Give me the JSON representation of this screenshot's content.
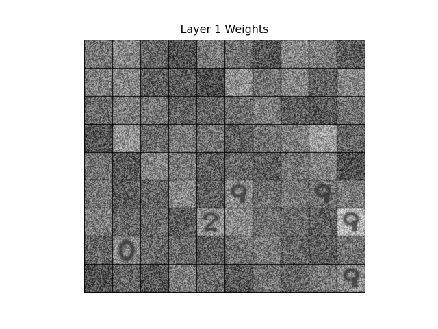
{
  "chart_data": {
    "type": "heatmap",
    "title": "Layer 1 Weights",
    "grid": {
      "rows": 9,
      "cols": 10
    },
    "colormap": "gray",
    "axes_visible": false,
    "tile_mean_brightness": [
      [
        0.47,
        0.53,
        0.4,
        0.33,
        0.48,
        0.45,
        0.33,
        0.53,
        0.5,
        0.36
      ],
      [
        0.5,
        0.53,
        0.38,
        0.37,
        0.3,
        0.57,
        0.45,
        0.54,
        0.4,
        0.53
      ],
      [
        0.42,
        0.5,
        0.47,
        0.38,
        0.4,
        0.43,
        0.5,
        0.38,
        0.35,
        0.45
      ],
      [
        0.34,
        0.58,
        0.42,
        0.48,
        0.45,
        0.38,
        0.46,
        0.5,
        0.62,
        0.4
      ],
      [
        0.46,
        0.35,
        0.52,
        0.48,
        0.38,
        0.42,
        0.38,
        0.45,
        0.52,
        0.32
      ],
      [
        0.47,
        0.37,
        0.4,
        0.53,
        0.38,
        0.55,
        0.43,
        0.47,
        0.45,
        0.48
      ],
      [
        0.5,
        0.4,
        0.42,
        0.37,
        0.57,
        0.55,
        0.45,
        0.42,
        0.37,
        0.72
      ],
      [
        0.4,
        0.55,
        0.42,
        0.43,
        0.38,
        0.45,
        0.48,
        0.4,
        0.37,
        0.45
      ],
      [
        0.32,
        0.4,
        0.35,
        0.5,
        0.43,
        0.35,
        0.45,
        0.4,
        0.48,
        0.55
      ]
    ],
    "digit_patterns": [
      {
        "row": 5,
        "col": 5,
        "shape": "9"
      },
      {
        "row": 5,
        "col": 8,
        "shape": "9"
      },
      {
        "row": 6,
        "col": 9,
        "shape": "9"
      },
      {
        "row": 6,
        "col": 4,
        "shape": "2"
      },
      {
        "row": 7,
        "col": 1,
        "shape": "0"
      },
      {
        "row": 8,
        "col": 9,
        "shape": "9"
      }
    ]
  }
}
